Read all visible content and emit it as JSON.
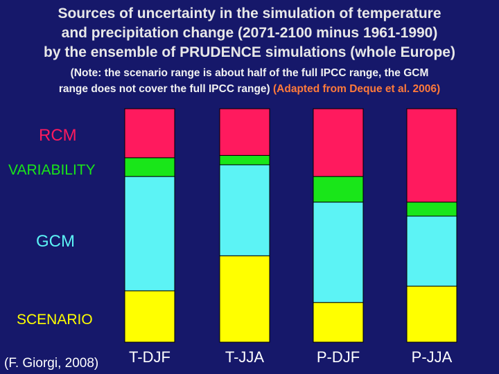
{
  "title": {
    "line1": "Sources of uncertainty in the simulation of temperature",
    "line2": "and precipitation change (2071-2100 minus 1961-1990)",
    "line3": "by the ensemble of PRUDENCE simulations (whole Europe)"
  },
  "note": {
    "line1": "(Note: the scenario range is about half of the full IPCC range, the GCM",
    "line2_main": "range does not cover the full IPCC range)",
    "line2_source": "(Adapted from Deque et al. 2006)"
  },
  "credit": "(F. Giorgi, 2008)",
  "colors": {
    "background": "#16186a",
    "RCM": "#ff1a5e",
    "VARIABILITY": "#19e619",
    "GCM": "#5cf3f5",
    "SCENARIO": "#ffff00",
    "adapted": "#ff7a3a"
  },
  "chart_data": {
    "type": "bar",
    "stacked": true,
    "categories": [
      "T-DJF",
      "T-JJA",
      "P-DJF",
      "P-JJA"
    ],
    "series": [
      {
        "name": "SCENARIO",
        "values": [
          22,
          37,
          17,
          24
        ]
      },
      {
        "name": "GCM",
        "values": [
          49,
          39,
          43,
          30
        ]
      },
      {
        "name": "VARIABILITY",
        "values": [
          8,
          4,
          11,
          6
        ]
      },
      {
        "name": "RCM",
        "values": [
          21,
          20,
          29,
          40
        ]
      }
    ],
    "ylim": [
      0,
      100
    ],
    "legend": [
      "RCM",
      "VARIABILITY",
      "GCM",
      "SCENARIO"
    ],
    "legend_position": "left"
  }
}
